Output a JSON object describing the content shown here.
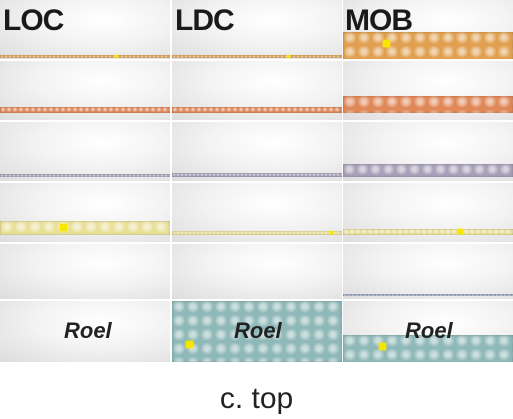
{
  "columns": [
    {
      "label": "LOC",
      "rows": [
        {
          "color": "#e0a050",
          "fill": 0.01
        },
        {
          "color": "#e08858",
          "fill": 0.02
        },
        {
          "color": "#a8a0b8",
          "fill": 0.005
        },
        {
          "color": "#e8e098",
          "fill": 0.1
        },
        {
          "color": "#9aa8c0",
          "fill": 0.0
        },
        {
          "color": "#8fb8b8",
          "fill": 0.0
        }
      ],
      "roel": "Roel"
    },
    {
      "label": "LDC",
      "rows": [
        {
          "color": "#e0a050",
          "fill": 0.01
        },
        {
          "color": "#e08858",
          "fill": 0.02
        },
        {
          "color": "#a8a0b8",
          "fill": 0.03
        },
        {
          "color": "#e8e098",
          "fill": 0.03
        },
        {
          "color": "#9aa8c0",
          "fill": 0.0
        },
        {
          "color": "#8fb8b8",
          "fill": 1.0
        }
      ],
      "roel": "Roel"
    },
    {
      "label": "MOB",
      "rows": [
        {
          "color": "#e0a050",
          "fill": 0.42
        },
        {
          "color": "#e08858",
          "fill": 0.12
        },
        {
          "color": "#a8a0b8",
          "fill": 0.09
        },
        {
          "color": "#e8e098",
          "fill": 0.04
        },
        {
          "color": "#9aa8c0",
          "fill": 0.01
        },
        {
          "color": "#8fb8b8",
          "fill": 0.4
        }
      ],
      "roel": "Roel"
    }
  ],
  "caption": "c. top"
}
